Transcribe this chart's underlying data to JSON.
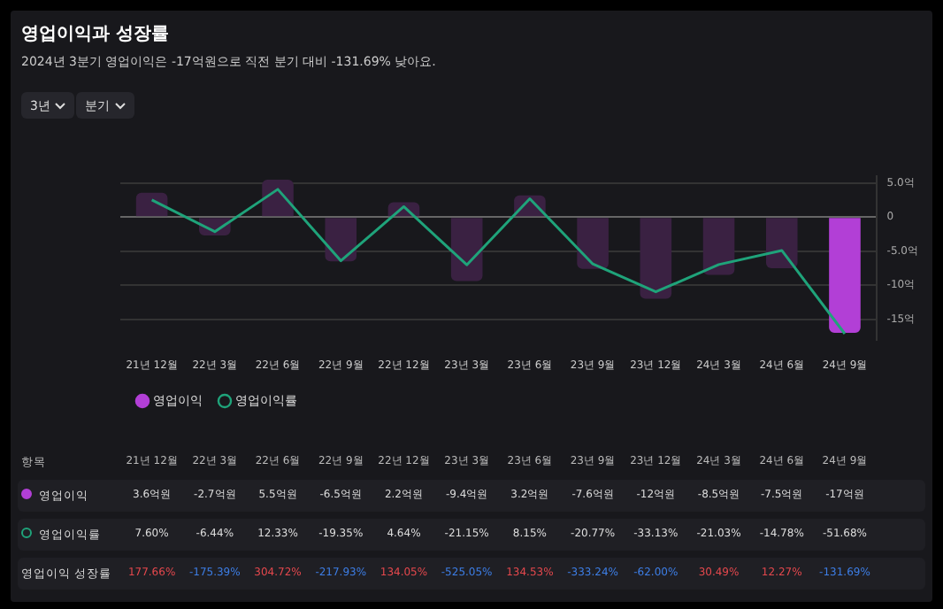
{
  "chart_data": {
    "type": "bar",
    "title": "영업이익과 성장률",
    "subtitle": "2024년 3분기 영업이익은 -17억원으로 직전 분기 대비 -131.69% 낮아요.",
    "categories": [
      "21년 12월",
      "22년 3월",
      "22년 6월",
      "22년 9월",
      "22년 12월",
      "23년 3월",
      "23년 6월",
      "23년 9월",
      "23년 12월",
      "24년 3월",
      "24년 6월",
      "24년 9월"
    ],
    "series": [
      {
        "name": "영업이익",
        "color": "#b23fd6",
        "colors": [
          "#3a2142",
          "#3a2142",
          "#3a2142",
          "#3a2142",
          "#3a2142",
          "#3a2142",
          "#3a2142",
          "#3a2142",
          "#3a2142",
          "#3a2142",
          "#3a2142",
          "#b23fd6"
        ],
        "values": [
          3.6,
          -2.7,
          5.5,
          -6.5,
          2.2,
          -9.4,
          3.2,
          -7.6,
          -12,
          -8.5,
          -7.5,
          -17
        ],
        "value_labels": [
          "3.6억원",
          "-2.7억원",
          "5.5억원",
          "-6.5억원",
          "2.2억원",
          "-9.4억원",
          "3.2억원",
          "-7.6억원",
          "-12억원",
          "-8.5억원",
          "-7.5억원",
          "-17억원"
        ]
      },
      {
        "name": "영업이익률",
        "type": "line",
        "axis": "y2",
        "color": "#1fa37a",
        "values": [
          7.6,
          -6.44,
          12.33,
          -19.35,
          4.64,
          -21.15,
          8.15,
          -20.77,
          -33.13,
          -21.03,
          -14.78,
          -51.68
        ],
        "value_labels": [
          "7.60%",
          "-6.44%",
          "12.33%",
          "-19.35%",
          "4.64%",
          "-21.15%",
          "8.15%",
          "-20.77%",
          "-33.13%",
          "-21.03%",
          "-14.78%",
          "-51.68%"
        ]
      }
    ],
    "ylim": [
      -18,
      6
    ],
    "yticks": [
      {
        "value": 5,
        "label": "5.0억"
      },
      0,
      {
        "value": -5,
        "label": "-5.0억"
      },
      {
        "value": -10,
        "label": "-10억"
      },
      {
        "value": -15,
        "label": "-15억"
      }
    ],
    "grid": "y",
    "legend": "bottom left",
    "marker": "none",
    "annotations": [
      "3년",
      "분기",
      "항목",
      "영업이익 성장률",
      "177.66%",
      "-175.39%",
      "304.72%",
      "-217.93%",
      "134.05%",
      "-525.05%",
      "134.53%",
      "-333.24%",
      "-62.00%",
      "30.49%",
      "12.27%",
      "-131.69%"
    ]
  }
}
